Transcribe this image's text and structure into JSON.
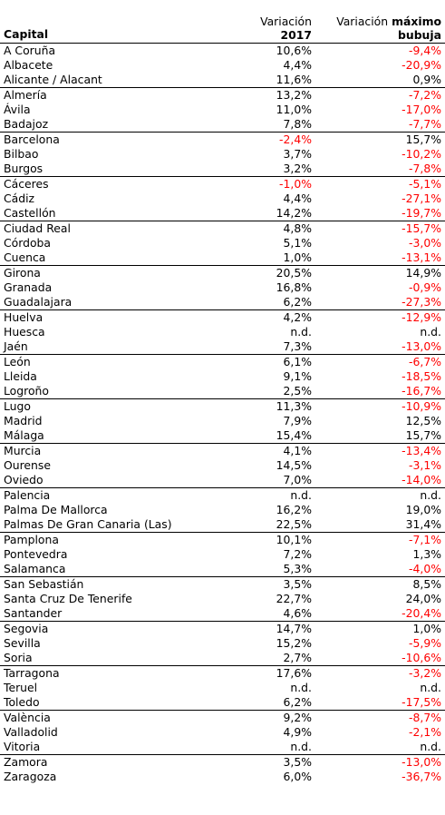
{
  "header": {
    "capital": "Capital",
    "col2_line1": "Variación",
    "col2_line2": "2017",
    "col3_line1_a": "Variación ",
    "col3_line1_b": "máximo",
    "col3_line2": "bubuja"
  },
  "rows": [
    {
      "name": "A Coruña",
      "v2017": "10,6%",
      "vmax": "-9,4%",
      "neg17": false,
      "negmax": true,
      "sep": false
    },
    {
      "name": "Albacete",
      "v2017": "4,4%",
      "vmax": "-20,9%",
      "neg17": false,
      "negmax": true,
      "sep": false
    },
    {
      "name": "Alicante / Alacant",
      "v2017": "11,6%",
      "vmax": "0,9%",
      "neg17": false,
      "negmax": false,
      "sep": true
    },
    {
      "name": "Almería",
      "v2017": "13,2%",
      "vmax": "-7,2%",
      "neg17": false,
      "negmax": true,
      "sep": false
    },
    {
      "name": "Ávila",
      "v2017": "11,0%",
      "vmax": "-17,0%",
      "neg17": false,
      "negmax": true,
      "sep": false
    },
    {
      "name": "Badajoz",
      "v2017": "7,8%",
      "vmax": "-7,7%",
      "neg17": false,
      "negmax": true,
      "sep": true
    },
    {
      "name": "Barcelona",
      "v2017": "-2,4%",
      "vmax": "15,7%",
      "neg17": true,
      "negmax": false,
      "sep": false
    },
    {
      "name": "Bilbao",
      "v2017": "3,7%",
      "vmax": "-10,2%",
      "neg17": false,
      "negmax": true,
      "sep": false
    },
    {
      "name": "Burgos",
      "v2017": "3,2%",
      "vmax": "-7,8%",
      "neg17": false,
      "negmax": true,
      "sep": true
    },
    {
      "name": "Cáceres",
      "v2017": "-1,0%",
      "vmax": "-5,1%",
      "neg17": true,
      "negmax": true,
      "sep": false
    },
    {
      "name": "Cádiz",
      "v2017": "4,4%",
      "vmax": "-27,1%",
      "neg17": false,
      "negmax": true,
      "sep": false
    },
    {
      "name": "Castellón",
      "v2017": "14,2%",
      "vmax": "-19,7%",
      "neg17": false,
      "negmax": true,
      "sep": true
    },
    {
      "name": "Ciudad Real",
      "v2017": "4,8%",
      "vmax": "-15,7%",
      "neg17": false,
      "negmax": true,
      "sep": false
    },
    {
      "name": "Córdoba",
      "v2017": "5,1%",
      "vmax": "-3,0%",
      "neg17": false,
      "negmax": true,
      "sep": false
    },
    {
      "name": "Cuenca",
      "v2017": "1,0%",
      "vmax": "-13,1%",
      "neg17": false,
      "negmax": true,
      "sep": true
    },
    {
      "name": "Girona",
      "v2017": "20,5%",
      "vmax": "14,9%",
      "neg17": false,
      "negmax": false,
      "sep": false
    },
    {
      "name": "Granada",
      "v2017": "16,8%",
      "vmax": "-0,9%",
      "neg17": false,
      "negmax": true,
      "sep": false
    },
    {
      "name": "Guadalajara",
      "v2017": "6,2%",
      "vmax": "-27,3%",
      "neg17": false,
      "negmax": true,
      "sep": true
    },
    {
      "name": "Huelva",
      "v2017": "4,2%",
      "vmax": "-12,9%",
      "neg17": false,
      "negmax": true,
      "sep": false
    },
    {
      "name": "Huesca",
      "v2017": "n.d.",
      "vmax": "n.d.",
      "neg17": false,
      "negmax": false,
      "sep": false
    },
    {
      "name": "Jaén",
      "v2017": "7,3%",
      "vmax": "-13,0%",
      "neg17": false,
      "negmax": true,
      "sep": true
    },
    {
      "name": "León",
      "v2017": "6,1%",
      "vmax": "-6,7%",
      "neg17": false,
      "negmax": true,
      "sep": false
    },
    {
      "name": "Lleida",
      "v2017": "9,1%",
      "vmax": "-18,5%",
      "neg17": false,
      "negmax": true,
      "sep": false
    },
    {
      "name": "Logroño",
      "v2017": "2,5%",
      "vmax": "-16,7%",
      "neg17": false,
      "negmax": true,
      "sep": true
    },
    {
      "name": "Lugo",
      "v2017": "11,3%",
      "vmax": "-10,9%",
      "neg17": false,
      "negmax": true,
      "sep": false
    },
    {
      "name": "Madrid",
      "v2017": "7,9%",
      "vmax": "12,5%",
      "neg17": false,
      "negmax": false,
      "sep": false
    },
    {
      "name": "Málaga",
      "v2017": "15,4%",
      "vmax": "15,7%",
      "neg17": false,
      "negmax": false,
      "sep": true
    },
    {
      "name": "Murcia",
      "v2017": "4,1%",
      "vmax": "-13,4%",
      "neg17": false,
      "negmax": true,
      "sep": false
    },
    {
      "name": "Ourense",
      "v2017": "14,5%",
      "vmax": "-3,1%",
      "neg17": false,
      "negmax": true,
      "sep": false
    },
    {
      "name": "Oviedo",
      "v2017": "7,0%",
      "vmax": "-14,0%",
      "neg17": false,
      "negmax": true,
      "sep": true
    },
    {
      "name": "Palencia",
      "v2017": "n.d.",
      "vmax": "n.d.",
      "neg17": false,
      "negmax": false,
      "sep": false
    },
    {
      "name": "Palma De Mallorca",
      "v2017": "16,2%",
      "vmax": "19,0%",
      "neg17": false,
      "negmax": false,
      "sep": false
    },
    {
      "name": "Palmas De Gran Canaria (Las)",
      "v2017": "22,5%",
      "vmax": "31,4%",
      "neg17": false,
      "negmax": false,
      "sep": true
    },
    {
      "name": "Pamplona",
      "v2017": "10,1%",
      "vmax": "-7,1%",
      "neg17": false,
      "negmax": true,
      "sep": false
    },
    {
      "name": "Pontevedra",
      "v2017": "7,2%",
      "vmax": "1,3%",
      "neg17": false,
      "negmax": false,
      "sep": false
    },
    {
      "name": "Salamanca",
      "v2017": "5,3%",
      "vmax": "-4,0%",
      "neg17": false,
      "negmax": true,
      "sep": true
    },
    {
      "name": "San Sebastián",
      "v2017": "3,5%",
      "vmax": "8,5%",
      "neg17": false,
      "negmax": false,
      "sep": false
    },
    {
      "name": "Santa Cruz De Tenerife",
      "v2017": "22,7%",
      "vmax": "24,0%",
      "neg17": false,
      "negmax": false,
      "sep": false
    },
    {
      "name": "Santander",
      "v2017": "4,6%",
      "vmax": "-20,4%",
      "neg17": false,
      "negmax": true,
      "sep": true
    },
    {
      "name": "Segovia",
      "v2017": "14,7%",
      "vmax": "1,0%",
      "neg17": false,
      "negmax": false,
      "sep": false
    },
    {
      "name": "Sevilla",
      "v2017": "15,2%",
      "vmax": "-5,9%",
      "neg17": false,
      "negmax": true,
      "sep": false
    },
    {
      "name": "Soria",
      "v2017": "2,7%",
      "vmax": "-10,6%",
      "neg17": false,
      "negmax": true,
      "sep": true
    },
    {
      "name": "Tarragona",
      "v2017": "17,6%",
      "vmax": "-3,2%",
      "neg17": false,
      "negmax": true,
      "sep": false
    },
    {
      "name": "Teruel",
      "v2017": "n.d.",
      "vmax": "n.d.",
      "neg17": false,
      "negmax": false,
      "sep": false
    },
    {
      "name": "Toledo",
      "v2017": "6,2%",
      "vmax": "-17,5%",
      "neg17": false,
      "negmax": true,
      "sep": true
    },
    {
      "name": "València",
      "v2017": "9,2%",
      "vmax": "-8,7%",
      "neg17": false,
      "negmax": true,
      "sep": false
    },
    {
      "name": "Valladolid",
      "v2017": "4,9%",
      "vmax": "-2,1%",
      "neg17": false,
      "negmax": true,
      "sep": false
    },
    {
      "name": "Vitoria",
      "v2017": "n.d.",
      "vmax": "n.d.",
      "neg17": false,
      "negmax": false,
      "sep": true
    },
    {
      "name": "Zamora",
      "v2017": "3,5%",
      "vmax": "-13,0%",
      "neg17": false,
      "negmax": true,
      "sep": false
    },
    {
      "name": "Zaragoza",
      "v2017": "6,0%",
      "vmax": "-36,7%",
      "neg17": false,
      "negmax": true,
      "sep": false
    }
  ]
}
